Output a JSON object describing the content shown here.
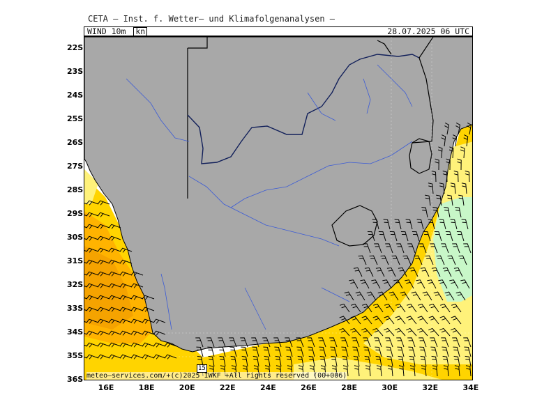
{
  "header": {
    "institute": "CETA — Inst. f. Wetter— und Klimafolgenanalysen —",
    "variable": "WIND_10m_",
    "unit": "kn",
    "datetime": "28.07.2025 06 UTC"
  },
  "footer": {
    "copyright": "meteo—services.com/+(c)2025 IWKF +All rights reserved (00+006)",
    "badge": "15"
  },
  "axes": {
    "lat_labels": [
      "22S",
      "23S",
      "24S",
      "25S",
      "26S",
      "27S",
      "28S",
      "29S",
      "30S",
      "31S",
      "32S",
      "33S",
      "34S",
      "35S",
      "36S"
    ],
    "lon_labels": [
      "16E",
      "18E",
      "20E",
      "22E",
      "24E",
      "26E",
      "28E",
      "30E",
      "32E",
      "34E"
    ]
  },
  "colors": {
    "land": "#a8a8a8",
    "sea": "#ffffff",
    "river": "#3b5bd6",
    "border": "#000000",
    "wind_10_15": "#fff27a",
    "wind_15_20": "#ffd400",
    "wind_20_25": "#ffb300",
    "wind_25_30": "#f5a300",
    "wind_5_10": "#c8f7c8"
  }
}
